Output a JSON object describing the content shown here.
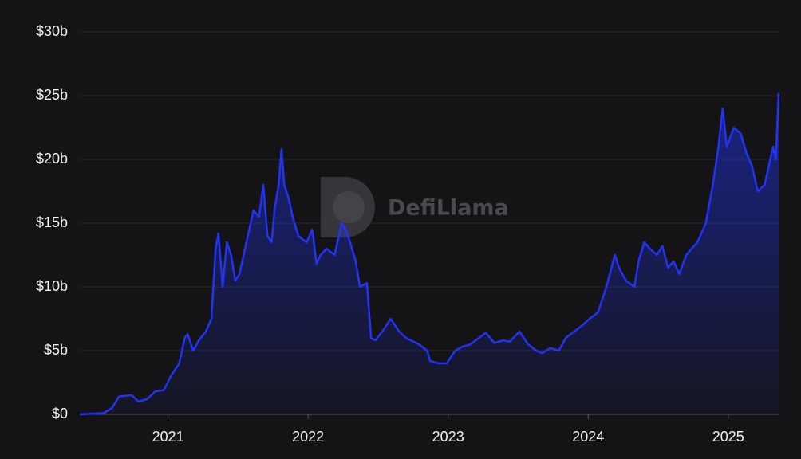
{
  "chart_data": {
    "type": "area",
    "watermark": "DefiLlama",
    "x": [
      2020.37,
      2020.54,
      2020.6,
      2020.65,
      2020.74,
      2020.79,
      2020.85,
      2020.91,
      2020.97,
      2021.02,
      2021.08,
      2021.12,
      2021.14,
      2021.18,
      2021.22,
      2021.27,
      2021.31,
      2021.34,
      2021.36,
      2021.39,
      2021.42,
      2021.45,
      2021.48,
      2021.51,
      2021.56,
      2021.61,
      2021.65,
      2021.68,
      2021.71,
      2021.74,
      2021.76,
      2021.79,
      2021.81,
      2021.83,
      2021.86,
      2021.89,
      2021.93,
      2021.99,
      2022.03,
      2022.06,
      2022.09,
      2022.13,
      2022.19,
      2022.24,
      2022.27,
      2022.3,
      2022.34,
      2022.37,
      2022.42,
      2022.45,
      2022.48,
      2022.53,
      2022.59,
      2022.65,
      2022.7,
      2022.79,
      2022.85,
      2022.87,
      2022.93,
      2022.99,
      2023.05,
      2023.1,
      2023.16,
      2023.22,
      2023.27,
      2023.33,
      2023.39,
      2023.44,
      2023.51,
      2023.57,
      2023.63,
      2023.67,
      2023.73,
      2023.79,
      2023.84,
      2023.9,
      2023.96,
      2024.01,
      2024.07,
      2024.13,
      2024.19,
      2024.22,
      2024.27,
      2024.33,
      2024.36,
      2024.4,
      2024.44,
      2024.49,
      2024.53,
      2024.57,
      2024.61,
      2024.65,
      2024.7,
      2024.74,
      2024.78,
      2024.84,
      2024.89,
      2024.93,
      2024.96,
      2024.99,
      2025.04,
      2025.09,
      2025.13,
      2025.17,
      2025.21,
      2025.26,
      2025.3,
      2025.32,
      2025.34,
      2025.36
    ],
    "values": [
      0,
      0.1,
      0.5,
      1.4,
      1.5,
      1.0,
      1.2,
      1.8,
      1.9,
      3.0,
      4.0,
      6.0,
      6.3,
      5.0,
      5.8,
      6.5,
      7.5,
      13.0,
      14.2,
      10.0,
      13.5,
      12.5,
      10.5,
      11.0,
      13.5,
      16.0,
      15.5,
      18.0,
      14.0,
      13.5,
      16.0,
      18.0,
      20.8,
      18.0,
      17.0,
      15.5,
      14.0,
      13.5,
      14.5,
      11.8,
      12.5,
      13.0,
      12.5,
      15.0,
      14.5,
      13.5,
      12.0,
      10.0,
      10.3,
      6.0,
      5.8,
      6.5,
      7.5,
      6.5,
      6.0,
      5.5,
      5.0,
      4.2,
      4.0,
      4.0,
      5.0,
      5.3,
      5.5,
      6.0,
      6.4,
      5.6,
      5.8,
      5.7,
      6.5,
      5.5,
      5.0,
      4.8,
      5.2,
      5.0,
      6.0,
      6.5,
      7.0,
      7.5,
      8.0,
      10.0,
      12.5,
      11.5,
      10.5,
      10.0,
      12.0,
      13.5,
      13.0,
      12.5,
      13.2,
      11.5,
      12.0,
      11.0,
      12.5,
      13.0,
      13.5,
      15.0,
      18.0,
      21.0,
      24.0,
      21.0,
      22.5,
      22.0,
      20.5,
      19.5,
      17.5,
      18.0,
      20.0,
      21.0,
      20.0,
      25.2
    ],
    "color": "#2233f5",
    "xlim": [
      2020.37,
      2025.36
    ],
    "xticks": [
      2021,
      2022,
      2023,
      2024,
      2025
    ],
    "ylim": [
      0,
      30
    ],
    "yticks": [
      {
        "value": 0,
        "label": "$0"
      },
      {
        "value": 5,
        "label": "$5b"
      },
      {
        "value": 10,
        "label": "$10b"
      },
      {
        "value": 15,
        "label": "$15b"
      },
      {
        "value": 20,
        "label": "$20b"
      },
      {
        "value": 25,
        "label": "$25b"
      },
      {
        "value": 30,
        "label": "$30b"
      }
    ],
    "grid": true
  }
}
